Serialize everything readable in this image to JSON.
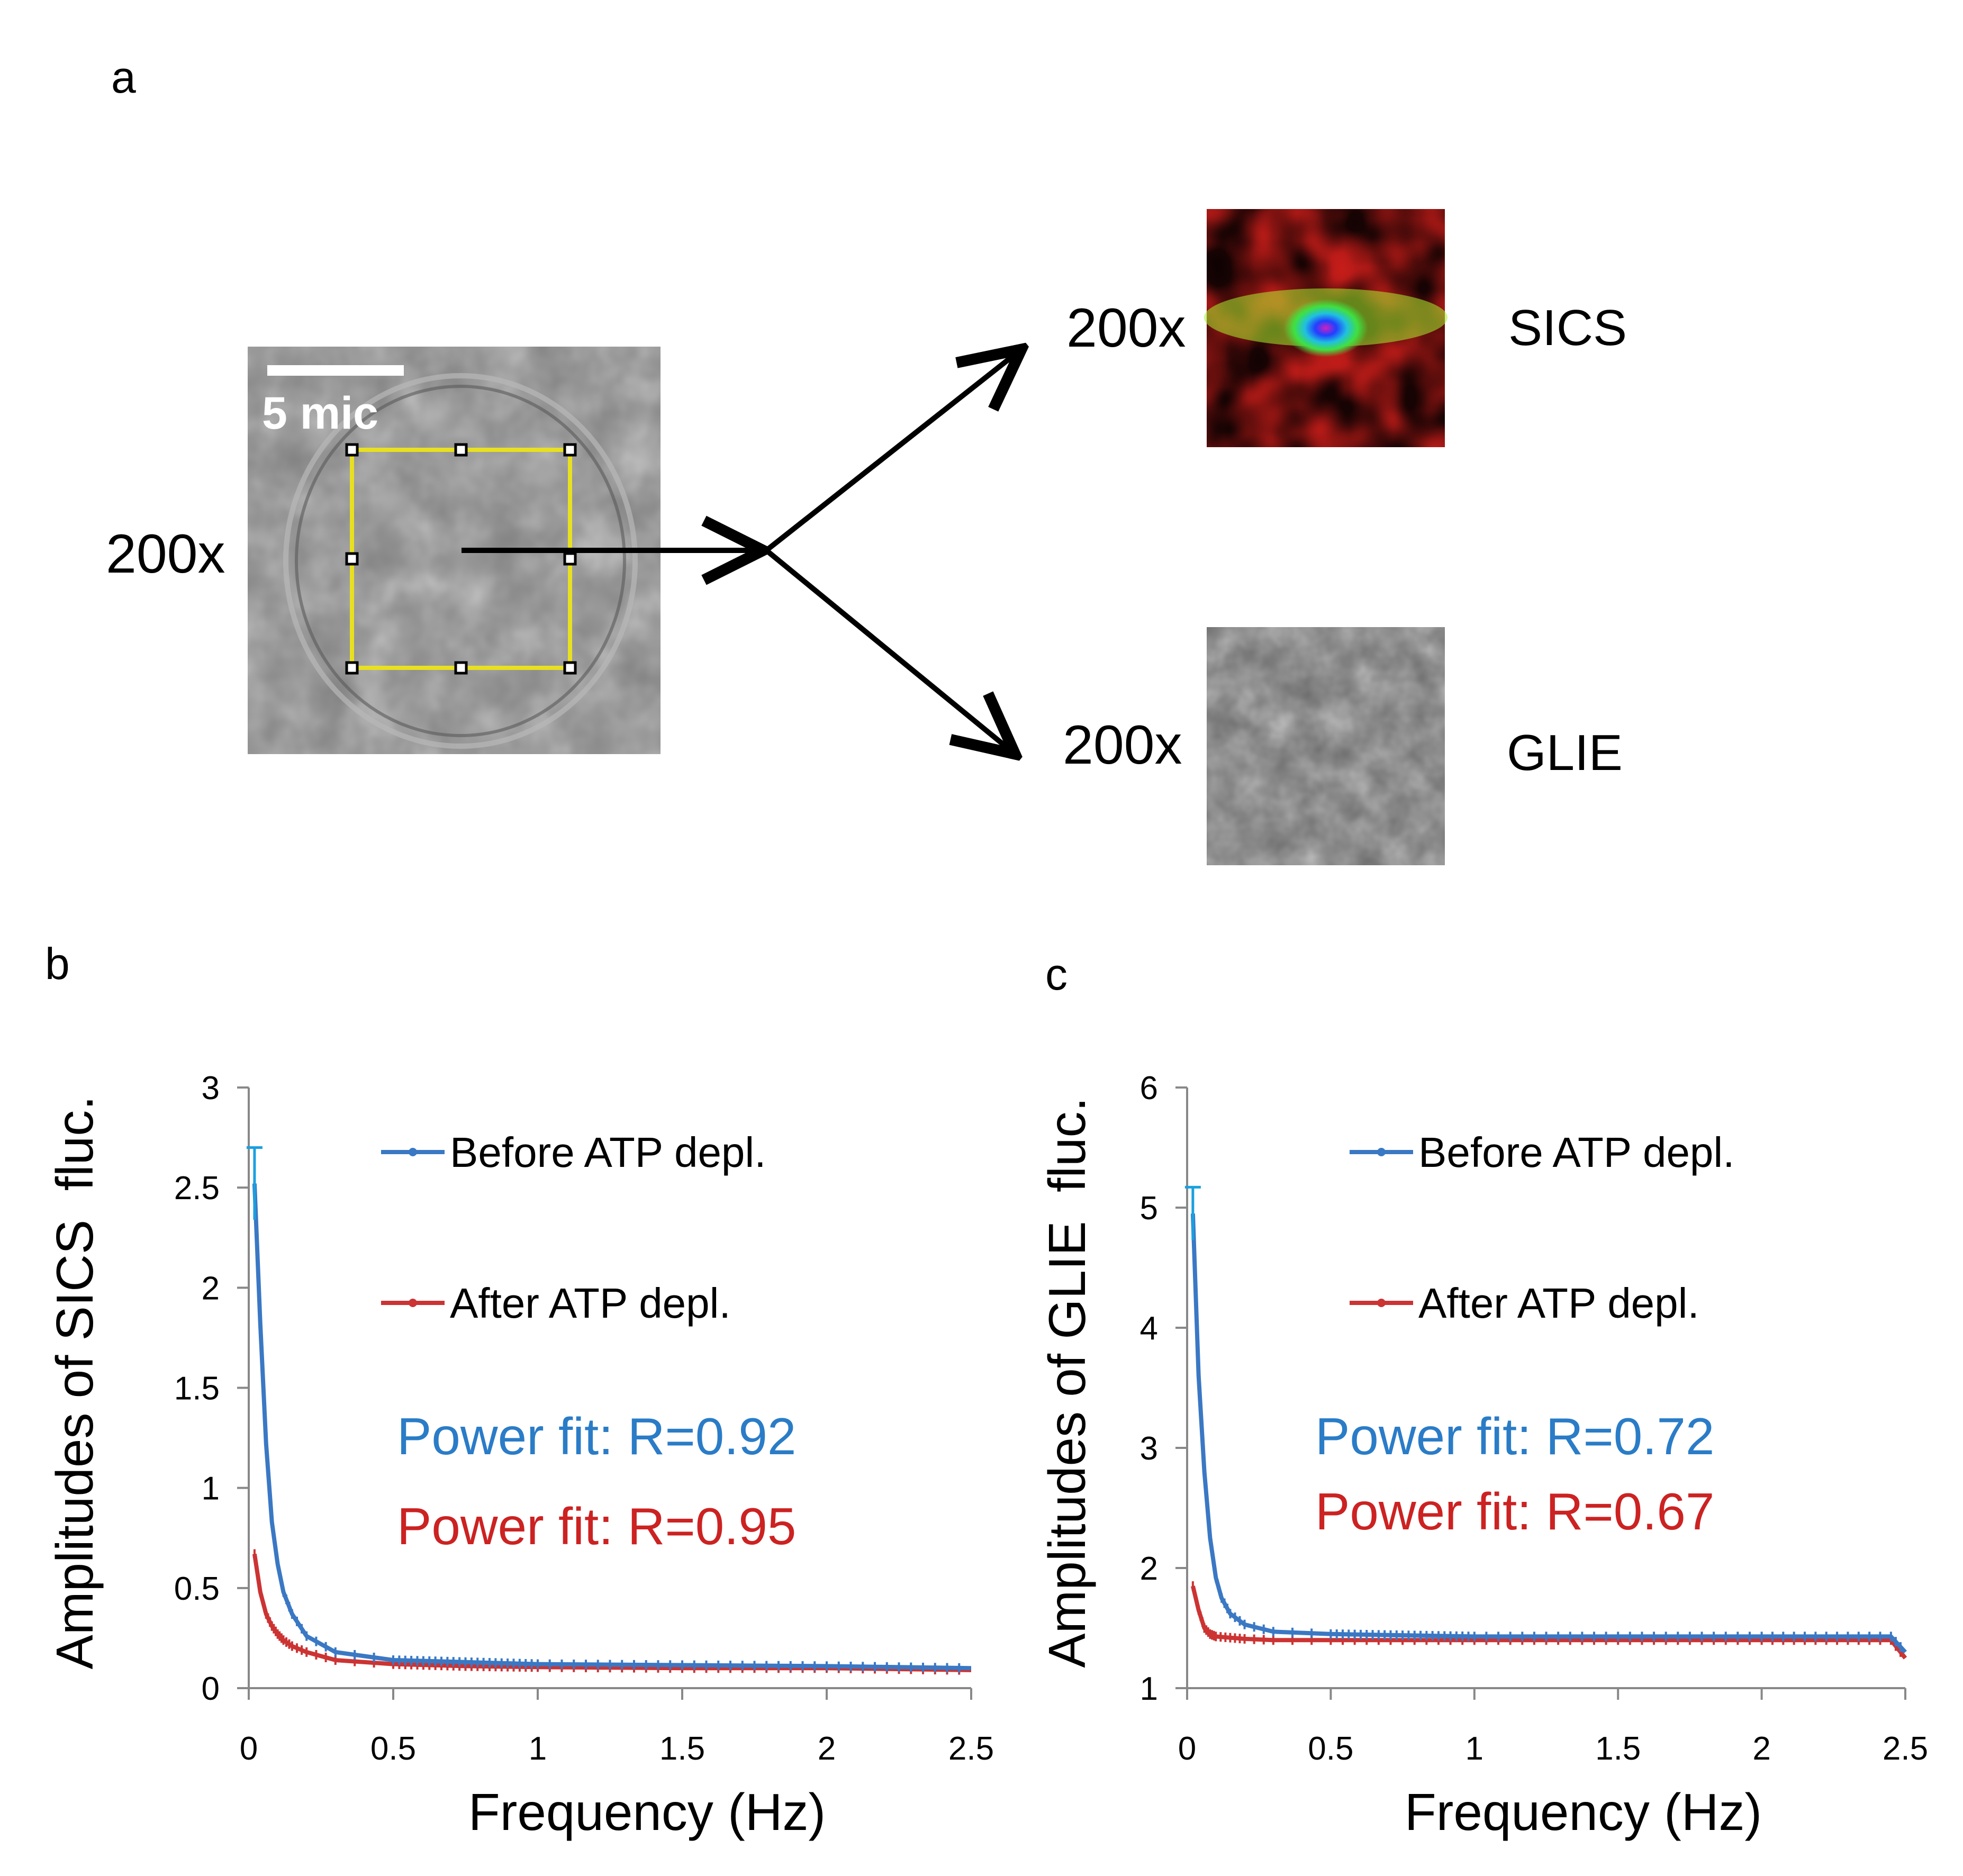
{
  "panel_a": {
    "letter": "a",
    "input_magnification": "200x",
    "scale_bar_label": "5 mic",
    "outputs": [
      {
        "magnification": "200x",
        "method": "SICS"
      },
      {
        "magnification": "200x",
        "method": "GLIE"
      }
    ]
  },
  "colors": {
    "before": "#3a78c4",
    "before_errbar": "#1aa0e0",
    "after": "#cc3333",
    "fit_before": "#2a7cc7",
    "fit_after": "#cc2222",
    "roi": "#e8e020"
  },
  "chart_data": [
    {
      "panel": "b",
      "type": "line",
      "xlabel": "Frequency (Hz)",
      "ylabel": "Amplitudes of SICS  fluc.",
      "xlim": [
        0,
        2.5
      ],
      "ylim": [
        0,
        3
      ],
      "xticks": [
        "0",
        "0.5",
        "1",
        "1.5",
        "2",
        "2.5"
      ],
      "yticks": [
        "0",
        "0.5",
        "1",
        "1.5",
        "2",
        "2.5",
        "3"
      ],
      "grid": false,
      "legend_position": "top-right",
      "series": [
        {
          "name": "Before ATP depl.",
          "color_key": "before",
          "x": [
            0.02,
            0.04,
            0.06,
            0.08,
            0.1,
            0.12,
            0.15,
            0.2,
            0.3,
            0.5,
            0.75,
            1.0,
            1.5,
            2.0,
            2.5
          ],
          "y": [
            2.52,
            1.82,
            1.22,
            0.83,
            0.62,
            0.48,
            0.37,
            0.26,
            0.18,
            0.14,
            0.13,
            0.12,
            0.115,
            0.11,
            0.1
          ],
          "err_peak": 0.18
        },
        {
          "name": "After ATP depl.",
          "color_key": "after",
          "x": [
            0.02,
            0.04,
            0.06,
            0.08,
            0.1,
            0.12,
            0.15,
            0.2,
            0.3,
            0.5,
            0.75,
            1.0,
            1.5,
            2.0,
            2.5
          ],
          "y": [
            0.67,
            0.48,
            0.37,
            0.31,
            0.27,
            0.24,
            0.21,
            0.18,
            0.14,
            0.12,
            0.11,
            0.105,
            0.1,
            0.1,
            0.09
          ]
        }
      ],
      "fits": [
        {
          "text": "Power fit: R=0.92",
          "color_key": "fit_before"
        },
        {
          "text": "Power fit: R=0.95",
          "color_key": "fit_after"
        }
      ]
    },
    {
      "panel": "c",
      "type": "line",
      "xlabel": "Frequency (Hz)",
      "ylabel": "Amplitudes of GLIE  fluc.",
      "xlim": [
        0,
        2.5
      ],
      "ylim": [
        1,
        6
      ],
      "xticks": [
        "0",
        "0.5",
        "1",
        "1.5",
        "2",
        "2.5"
      ],
      "yticks": [
        "1",
        "2",
        "3",
        "4",
        "5",
        "6"
      ],
      "grid": false,
      "legend_position": "top-right",
      "series": [
        {
          "name": "Before ATP depl.",
          "color_key": "before",
          "x": [
            0.02,
            0.04,
            0.06,
            0.08,
            0.1,
            0.12,
            0.15,
            0.2,
            0.3,
            0.5,
            0.75,
            1.0,
            1.5,
            2.0,
            2.45,
            2.5
          ],
          "y": [
            4.95,
            3.6,
            2.8,
            2.25,
            1.92,
            1.75,
            1.62,
            1.53,
            1.47,
            1.45,
            1.44,
            1.43,
            1.43,
            1.43,
            1.43,
            1.3
          ],
          "err_peak": 0.22
        },
        {
          "name": "After ATP depl.",
          "color_key": "after",
          "x": [
            0.02,
            0.04,
            0.06,
            0.08,
            0.1,
            0.15,
            0.2,
            0.3,
            0.5,
            1.0,
            1.5,
            2.0,
            2.45,
            2.5
          ],
          "y": [
            1.85,
            1.65,
            1.5,
            1.45,
            1.43,
            1.42,
            1.41,
            1.4,
            1.4,
            1.4,
            1.4,
            1.4,
            1.4,
            1.25
          ]
        }
      ],
      "fits": [
        {
          "text": "Power fit: R=0.72",
          "color_key": "fit_before"
        },
        {
          "text": "Power fit: R=0.67",
          "color_key": "fit_after"
        }
      ]
    }
  ]
}
